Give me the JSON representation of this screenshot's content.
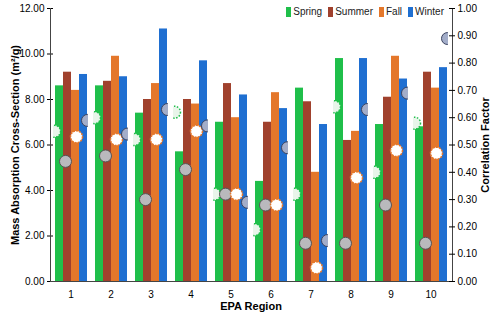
{
  "chart_data": {
    "type": "bar",
    "x_label": "EPA Region",
    "y_label": "Mass Absorption Cross-Section (m²/g)",
    "y2_label": "Correlation Factor",
    "categories": [
      1,
      2,
      3,
      4,
      5,
      6,
      7,
      8,
      9,
      10
    ],
    "ylim": [
      0,
      12
    ],
    "yticks": [
      {
        "value": 0,
        "label": "0.00"
      },
      {
        "value": 2,
        "label": "2.00"
      },
      {
        "value": 4,
        "label": "4.00"
      },
      {
        "value": 6,
        "label": "6.00"
      },
      {
        "value": 8,
        "label": "8.00"
      },
      {
        "value": 10,
        "label": "10.00"
      },
      {
        "value": 12,
        "label": "12.00"
      }
    ],
    "y2lim": [
      0,
      1
    ],
    "y2ticks": [
      {
        "value": 0,
        "label": "0.00"
      },
      {
        "value": 0.1,
        "label": "0.10"
      },
      {
        "value": 0.2,
        "label": "0.20"
      },
      {
        "value": 0.3,
        "label": "0.30"
      },
      {
        "value": 0.4,
        "label": "0.40"
      },
      {
        "value": 0.5,
        "label": "0.50"
      },
      {
        "value": 0.6,
        "label": "0.60"
      },
      {
        "value": 0.7,
        "label": "0.70"
      },
      {
        "value": 0.8,
        "label": "0.80"
      },
      {
        "value": 0.9,
        "label": "0.90"
      },
      {
        "value": 1,
        "label": "1.00"
      }
    ],
    "legend": "top-right",
    "series": [
      {
        "name": "Spring",
        "type": "bar",
        "color": "#1fbf4a",
        "values": [
          8.6,
          8.6,
          7.4,
          5.7,
          7.0,
          4.4,
          8.5,
          9.8,
          6.9,
          6.8
        ]
      },
      {
        "name": "Summer",
        "type": "bar",
        "color": "#a0412d",
        "values": [
          9.2,
          8.8,
          8.0,
          8.0,
          8.7,
          7.0,
          7.9,
          6.2,
          8.1,
          9.2
        ]
      },
      {
        "name": "Fall",
        "type": "bar",
        "color": "#e4772b",
        "values": [
          8.4,
          9.9,
          8.7,
          7.8,
          7.2,
          8.3,
          4.8,
          6.6,
          9.9,
          8.5
        ]
      },
      {
        "name": "Winter",
        "type": "bar",
        "color": "#1f6fd1",
        "values": [
          9.1,
          9.0,
          11.1,
          9.7,
          8.2,
          7.6,
          6.9,
          9.8,
          8.9,
          9.4
        ]
      },
      {
        "name": "Spring",
        "type": "scatter",
        "axis": "y2",
        "marker": "circle",
        "color": "#1fbf4a",
        "values": [
          0.55,
          0.6,
          0.52,
          0.62,
          0.32,
          0.19,
          0.32,
          0.64,
          0.4,
          0.58
        ]
      },
      {
        "name": "Summer",
        "type": "scatter",
        "axis": "y2",
        "marker": "circle",
        "color": "#a0412d",
        "values": [
          0.44,
          0.46,
          0.3,
          0.41,
          0.32,
          0.28,
          0.14,
          0.14,
          0.28,
          0.14
        ]
      },
      {
        "name": "Fall",
        "type": "scatter",
        "axis": "y2",
        "marker": "circle",
        "color": "#e4772b",
        "values": [
          0.53,
          0.52,
          0.52,
          0.55,
          0.32,
          0.28,
          0.05,
          0.38,
          0.48,
          0.47
        ]
      },
      {
        "name": "Winter",
        "type": "scatter",
        "axis": "y2",
        "marker": "circle",
        "color": "#1f6fd1",
        "values": [
          0.59,
          0.54,
          0.63,
          0.57,
          0.29,
          0.49,
          0.15,
          0.63,
          0.69,
          0.89
        ]
      }
    ]
  }
}
